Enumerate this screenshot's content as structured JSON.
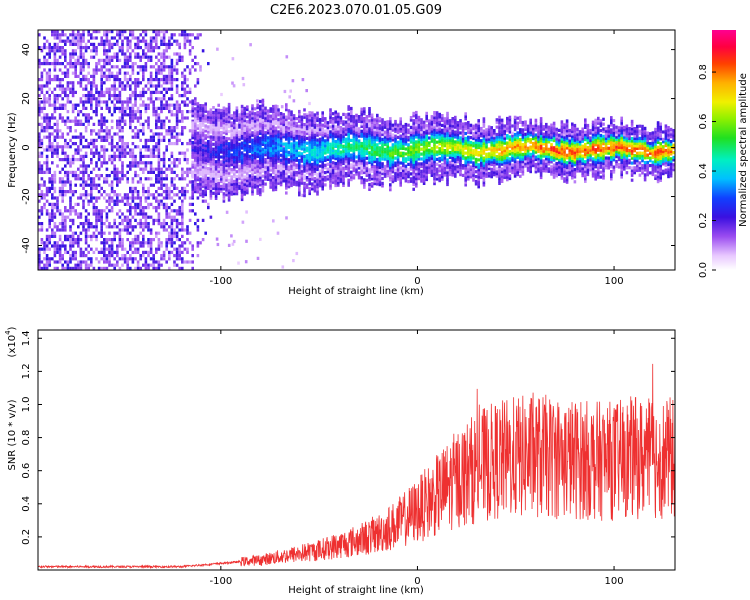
{
  "title": "C2E6.2023.070.01.05.G09",
  "colors": {
    "snr_line": "#ee3030",
    "axis": "#000000",
    "background": "#ffffff"
  },
  "chart_data": [
    {
      "type": "heatmap",
      "title": "C2E6.2023.070.01.05.G09",
      "xlabel": "Height of straight line (km)",
      "ylabel": "Frequency (Hz)",
      "xlim": [
        -193,
        131
      ],
      "ylim": [
        -50,
        48
      ],
      "x_ticks": [
        -100,
        0,
        100
      ],
      "y_ticks": [
        -40,
        -20,
        0,
        20,
        40
      ],
      "colorbar": {
        "label": "Normalized spectral amplitude",
        "range": [
          0.0,
          0.97
        ],
        "ticks": [
          0.0,
          0.2,
          0.4,
          0.6,
          0.8
        ],
        "colormap": "rainbow (white-violet-blue-cyan-green-yellow-orange-red-magenta)"
      },
      "features": {
        "noise_region_x": [
          -193,
          -105
        ],
        "noise_amplitude": 0.15,
        "signal_band_center_hz": 0,
        "signal_onset_x": -115,
        "signal_peak_amplitude": 0.85
      }
    },
    {
      "type": "line",
      "xlabel": "Height of straight line (km)",
      "ylabel": "SNR (10 * v/v)",
      "y_multiplier": "(x10^4)",
      "xlim": [
        -193,
        131
      ],
      "ylim": [
        0,
        1.45
      ],
      "x_ticks": [
        -100,
        0,
        100
      ],
      "y_ticks": [
        0.2,
        0.4,
        0.6,
        0.8,
        1.0,
        1.2,
        1.4
      ],
      "series": [
        {
          "x": [
            -193,
            -180,
            -160,
            -140,
            -120,
            -110,
            -100,
            -90,
            -80,
            -70,
            -60,
            -50,
            -40,
            -30,
            -20,
            -10,
            0,
            10,
            20,
            30,
            40,
            50,
            60,
            70,
            80,
            90,
            100,
            110,
            120,
            131
          ],
          "values": [
            0.02,
            0.02,
            0.02,
            0.02,
            0.02,
            0.03,
            0.04,
            0.05,
            0.06,
            0.08,
            0.1,
            0.12,
            0.15,
            0.18,
            0.22,
            0.28,
            0.36,
            0.45,
            0.55,
            0.62,
            0.66,
            0.68,
            0.69,
            0.68,
            0.67,
            0.66,
            0.66,
            0.68,
            0.67,
            0.68
          ]
        }
      ]
    }
  ],
  "axes_text": {
    "top_xlabel": "Height of straight line (km)",
    "top_ylabel": "Frequency (Hz)",
    "bottom_xlabel": "Height of straight line (km)",
    "bottom_ylabel": "SNR (10 * v/v)",
    "bottom_multiplier_base": "(x10",
    "bottom_multiplier_exp": "4",
    "bottom_multiplier_close": ")",
    "colorbar_label": "Normalized spectral amplitude"
  }
}
